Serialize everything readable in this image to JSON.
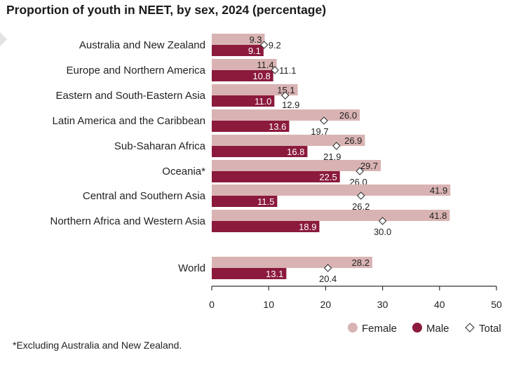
{
  "chart_data": {
    "type": "bar",
    "title": "Proportion of youth in NEET, by sex, 2024 (percentage)",
    "categories": [
      "Australia and New Zealand",
      "Europe and Northern America",
      "Eastern and South-Eastern Asia",
      "Latin America and the Caribbean",
      "Sub-Saharan Africa",
      "Oceania*",
      "Central and Southern Asia",
      "Northern Africa and Western Asia",
      "World"
    ],
    "series": [
      {
        "name": "Female",
        "values": [
          9.3,
          11.4,
          15.1,
          26.0,
          26.9,
          29.7,
          41.9,
          41.8,
          28.2
        ],
        "color": "#d9b3b3"
      },
      {
        "name": "Male",
        "values": [
          9.1,
          10.8,
          11.0,
          13.6,
          16.8,
          22.5,
          11.5,
          18.9,
          13.1
        ],
        "color": "#8b1a3c"
      },
      {
        "name": "Total",
        "values": [
          9.2,
          11.1,
          12.9,
          19.7,
          21.9,
          26.0,
          26.2,
          30.0,
          20.4
        ],
        "marker": "diamond"
      }
    ],
    "value_labels": {
      "Female": [
        "9.3",
        "11.4",
        "15.1",
        "26.0",
        "26.9",
        "29.7",
        "41.9",
        "41.8",
        "28.2"
      ],
      "Male": [
        "9.1",
        "10.8",
        "11.0",
        "13.6",
        "16.8",
        "22.5",
        "11.5",
        "18.9",
        "13.1"
      ],
      "Total": [
        "9.2",
        "11.1",
        "12.9",
        "19.7",
        "21.9",
        "26.0",
        "26.2",
        "30.0",
        "20.4"
      ]
    },
    "xlim": [
      0,
      50
    ],
    "x_ticks": [
      0,
      10,
      20,
      30,
      40,
      50
    ],
    "x_tick_labels": [
      "0",
      "10",
      "20",
      "30",
      "40",
      "50"
    ],
    "orientation": "horizontal",
    "legend_position": "bottom-right",
    "grid": false
  },
  "footnote": "*Excluding Australia and New Zealand."
}
